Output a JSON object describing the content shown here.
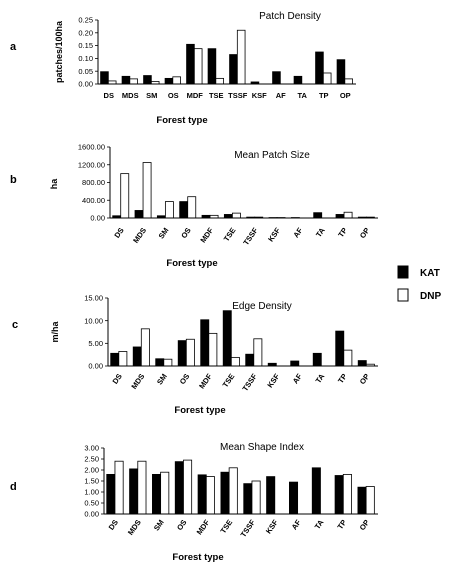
{
  "legend": [
    {
      "name": "KAT",
      "color": "#000000"
    },
    {
      "name": "DNP",
      "color": "#ffffff"
    }
  ],
  "chart_data": [
    {
      "type": "bar",
      "panel": "a",
      "title": "Patch Density",
      "xlabel": "Forest type",
      "ylabel": "patches/100ha",
      "ylim": [
        0,
        0.25
      ],
      "yticks": [
        "0.00",
        "0.05",
        "0.10",
        "0.15",
        "0.20",
        "0.25"
      ],
      "categories": [
        "DS",
        "MDS",
        "SM",
        "OS",
        "MDF",
        "TSE",
        "TSSF",
        "KSF",
        "AF",
        "TA",
        "TP",
        "OP"
      ],
      "series": [
        {
          "name": "KAT",
          "values": [
            0.048,
            0.03,
            0.033,
            0.022,
            0.155,
            0.138,
            0.115,
            0.008,
            0.048,
            0.03,
            0.125,
            0.095
          ]
        },
        {
          "name": "DNP",
          "values": [
            0.012,
            0.02,
            0.01,
            0.028,
            0.138,
            0.022,
            0.21,
            0.0,
            0.0,
            0.0,
            0.043,
            0.02
          ]
        }
      ]
    },
    {
      "type": "bar",
      "panel": "b",
      "title": "Mean Patch Size",
      "xlabel": "Forest type",
      "ylabel": "ha",
      "ylim": [
        0,
        1600
      ],
      "yticks": [
        "0.00",
        "400.00",
        "800.00",
        "1200.00",
        "1600.00"
      ],
      "categories": [
        "DS",
        "MDS",
        "SM",
        "OS",
        "MDF",
        "TSE",
        "TSSF",
        "KSF",
        "AF",
        "TA",
        "TP",
        "OP"
      ],
      "series": [
        {
          "name": "KAT",
          "values": [
            50,
            170,
            50,
            370,
            60,
            80,
            20,
            10,
            10,
            120,
            80,
            20
          ]
        },
        {
          "name": "DNP",
          "values": [
            1000,
            1250,
            370,
            480,
            60,
            110,
            20,
            10,
            0,
            0,
            130,
            20
          ]
        }
      ]
    },
    {
      "type": "bar",
      "panel": "c",
      "title": "Edge Density",
      "xlabel": "Forest type",
      "ylabel": "m/ha",
      "ylim": [
        0,
        15
      ],
      "yticks": [
        "0.00",
        "5.00",
        "10.00",
        "15.00"
      ],
      "categories": [
        "DS",
        "MDS",
        "SM",
        "OS",
        "MDF",
        "TSE",
        "TSSF",
        "KSF",
        "AF",
        "TA",
        "TP",
        "OP"
      ],
      "series": [
        {
          "name": "KAT",
          "values": [
            2.8,
            4.2,
            1.6,
            5.6,
            10.2,
            12.2,
            2.6,
            0.6,
            1.1,
            2.8,
            7.7,
            1.2
          ]
        },
        {
          "name": "DNP",
          "values": [
            3.2,
            8.2,
            1.5,
            5.9,
            7.2,
            1.9,
            6.0,
            0.0,
            0.0,
            0.0,
            3.5,
            0.4
          ]
        }
      ]
    },
    {
      "type": "bar",
      "panel": "d",
      "title": "Mean Shape Index",
      "xlabel": "Forest type",
      "ylabel": "",
      "ylim": [
        0,
        3
      ],
      "yticks": [
        "0.00",
        "0.50",
        "1.00",
        "1.50",
        "2.00",
        "2.50",
        "3.00"
      ],
      "categories": [
        "DS",
        "MDS",
        "SM",
        "OS",
        "MDF",
        "TSE",
        "TSSF",
        "KSF",
        "AF",
        "TA",
        "TP",
        "OP"
      ],
      "series": [
        {
          "name": "KAT",
          "values": [
            1.8,
            2.05,
            1.8,
            2.38,
            1.78,
            1.9,
            1.38,
            1.7,
            1.45,
            2.1,
            1.75,
            1.22
          ]
        },
        {
          "name": "DNP",
          "values": [
            2.4,
            2.4,
            1.9,
            2.45,
            1.7,
            2.1,
            1.5,
            0.0,
            0.0,
            0.0,
            1.8,
            1.25
          ]
        }
      ]
    }
  ]
}
